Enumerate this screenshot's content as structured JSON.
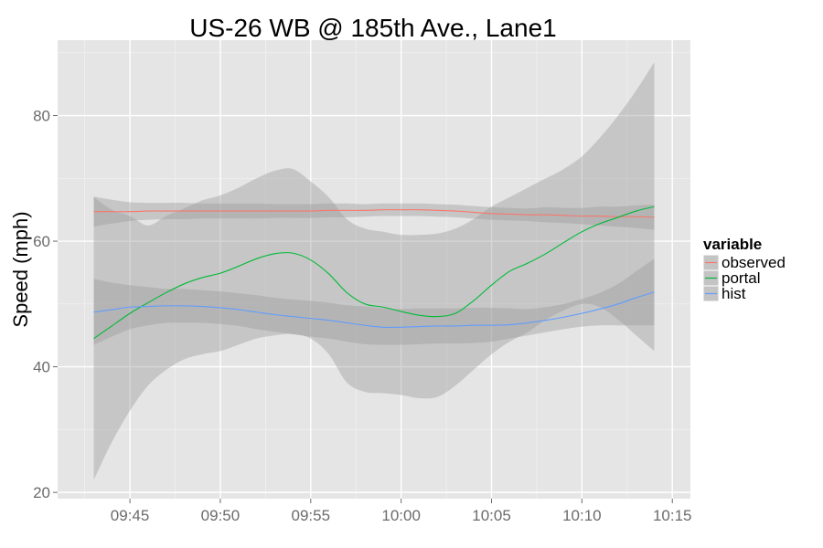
{
  "chart_data": {
    "type": "line",
    "title": "US-26 WB @ 185th Ave., Lane1",
    "xlabel": "",
    "ylabel": "Speed (mph)",
    "x_ticks": [
      "09:45",
      "09:50",
      "09:55",
      "10:00",
      "10:05",
      "10:10",
      "10:15"
    ],
    "y_ticks": [
      20,
      40,
      60,
      80
    ],
    "xlim": [
      "09:41",
      "10:16"
    ],
    "ylim": [
      19,
      92
    ],
    "grid": true,
    "legend": {
      "title": "variable",
      "position": "right"
    },
    "x": [
      "09:43",
      "09:44",
      "09:45",
      "09:46",
      "09:47",
      "09:48",
      "09:49",
      "09:50",
      "09:51",
      "09:52",
      "09:53",
      "09:54",
      "09:55",
      "09:56",
      "09:57",
      "09:58",
      "09:59",
      "10:00",
      "10:01",
      "10:02",
      "10:03",
      "10:04",
      "10:05",
      "10:06",
      "10:07",
      "10:08",
      "10:09",
      "10:10",
      "10:11",
      "10:12",
      "10:13",
      "10:14"
    ],
    "series": [
      {
        "name": "observed",
        "color": "#F8766D",
        "values": [
          64.7,
          64.7,
          64.7,
          64.8,
          64.8,
          64.8,
          64.8,
          64.8,
          64.8,
          64.8,
          64.8,
          64.8,
          64.8,
          64.9,
          64.9,
          64.9,
          65.0,
          65.0,
          65.0,
          64.9,
          64.8,
          64.6,
          64.4,
          64.3,
          64.2,
          64.2,
          64.1,
          64.0,
          64.0,
          63.9,
          63.9,
          63.8
        ],
        "lower": [
          62.3,
          62.8,
          63.2,
          63.4,
          63.5,
          63.5,
          63.6,
          63.6,
          63.6,
          63.6,
          63.7,
          63.7,
          63.7,
          63.8,
          63.8,
          63.9,
          64.0,
          64.0,
          64.0,
          63.9,
          63.8,
          63.6,
          63.4,
          63.3,
          63.2,
          63.0,
          62.9,
          62.7,
          62.5,
          62.3,
          62.1,
          61.8
        ],
        "upper": [
          67.1,
          66.6,
          66.2,
          66.1,
          66.1,
          66.1,
          66.0,
          66.0,
          66.0,
          66.0,
          65.9,
          65.9,
          65.9,
          66.0,
          66.0,
          65.9,
          66.0,
          66.0,
          66.0,
          65.9,
          65.8,
          65.6,
          65.4,
          65.3,
          65.2,
          65.4,
          65.3,
          65.3,
          65.5,
          65.5,
          65.7,
          65.8
        ]
      },
      {
        "name": "portal",
        "color": "#00BA38",
        "values": [
          44.5,
          46.5,
          48.5,
          50.2,
          51.8,
          53.2,
          54.2,
          54.9,
          56.0,
          57.2,
          58.0,
          58.1,
          57.0,
          54.8,
          51.8,
          50.0,
          49.5,
          48.8,
          48.2,
          48.0,
          48.5,
          50.5,
          53.0,
          55.2,
          56.5,
          58.0,
          59.8,
          61.5,
          62.8,
          63.8,
          64.8,
          65.5
        ],
        "lower": [
          22.0,
          28.0,
          33.0,
          37.0,
          39.5,
          41.2,
          42.0,
          42.5,
          43.5,
          44.5,
          45.0,
          45.2,
          44.5,
          42.0,
          37.5,
          36.0,
          35.8,
          35.5,
          35.0,
          35.2,
          37.0,
          39.5,
          42.0,
          44.0,
          45.5,
          47.5,
          49.0,
          50.0,
          49.5,
          47.5,
          45.0,
          42.5
        ],
        "upper": [
          67.0,
          65.0,
          64.0,
          62.5,
          64.0,
          65.2,
          66.5,
          67.3,
          68.5,
          70.0,
          71.2,
          71.5,
          69.5,
          67.0,
          63.5,
          62.0,
          61.5,
          61.0,
          61.0,
          61.2,
          62.0,
          63.5,
          65.5,
          67.0,
          68.5,
          70.0,
          71.5,
          73.5,
          76.5,
          80.0,
          84.0,
          88.5
        ]
      },
      {
        "name": "hist",
        "color": "#619CFF",
        "values": [
          48.7,
          49.1,
          49.5,
          49.6,
          49.7,
          49.7,
          49.6,
          49.4,
          49.1,
          48.7,
          48.3,
          48.0,
          47.7,
          47.4,
          47.0,
          46.6,
          46.3,
          46.3,
          46.4,
          46.5,
          46.5,
          46.6,
          46.6,
          46.7,
          47.0,
          47.4,
          47.9,
          48.5,
          49.2,
          50.0,
          51.0,
          51.9
        ],
        "lower": [
          43.5,
          44.8,
          46.0,
          46.6,
          47.0,
          47.0,
          47.0,
          46.8,
          46.5,
          46.0,
          45.6,
          45.2,
          44.8,
          44.5,
          44.0,
          43.6,
          43.5,
          43.5,
          43.6,
          43.7,
          43.7,
          43.8,
          44.0,
          44.5,
          45.0,
          45.5,
          46.0,
          46.4,
          46.6,
          46.6,
          46.6,
          46.6
        ],
        "upper": [
          54.0,
          53.4,
          53.0,
          52.7,
          52.4,
          52.4,
          52.2,
          52.0,
          51.7,
          51.4,
          51.0,
          50.7,
          50.5,
          50.2,
          49.8,
          49.6,
          49.3,
          49.2,
          49.3,
          49.3,
          49.3,
          49.4,
          49.4,
          49.3,
          49.2,
          49.5,
          50.0,
          50.8,
          51.8,
          53.2,
          55.2,
          57.2
        ]
      }
    ]
  }
}
